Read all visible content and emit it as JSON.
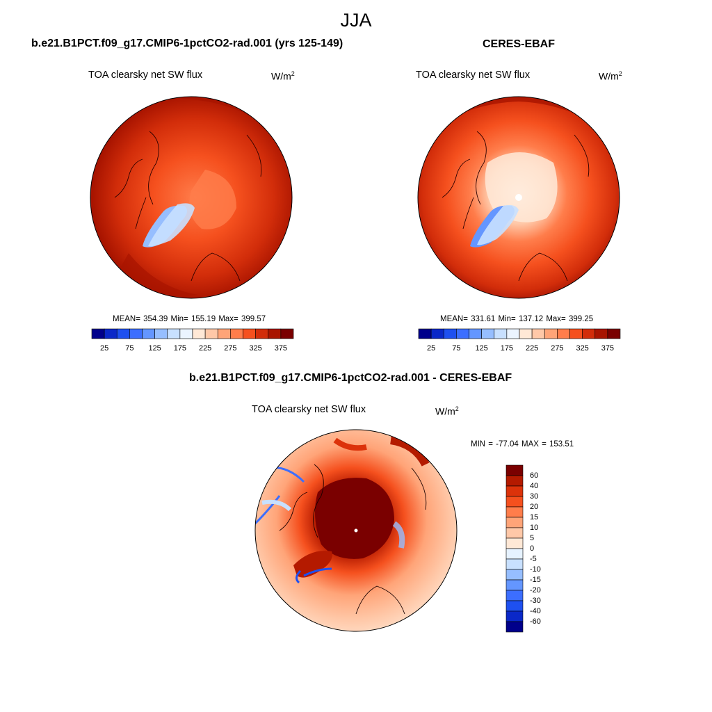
{
  "figure": {
    "season": "JJA"
  },
  "panels": [
    {
      "title": "b.e21.B1PCT.f09_g17.CMIP6-1pctCO2-rad.001 (yrs 125-149)",
      "variable": "TOA clearsky net SW flux",
      "units_base": "W/m",
      "units_exp": "2",
      "stats": "MEAN= 354.39  Min= 155.19  Max= 399.57"
    },
    {
      "title": "CERES-EBAF",
      "variable": "TOA clearsky net SW flux",
      "units_base": "W/m",
      "units_exp": "2",
      "stats": "MEAN= 331.61  Min= 137.12  Max= 399.25"
    },
    {
      "title": "b.e21.B1PCT.f09_g17.CMIP6-1pctCO2-rad.001 - CERES-EBAF",
      "variable": "TOA clearsky net SW flux",
      "units_base": "W/m",
      "units_exp": "2",
      "stats": "MIN = -77.04 MAX = 153.51"
    }
  ],
  "colorbars": {
    "field": {
      "tick_labels": [
        "25",
        "75",
        "125",
        "175",
        "225",
        "275",
        "325",
        "375"
      ],
      "colors": [
        "#00008b",
        "#0a28c8",
        "#1e50f0",
        "#3c6eff",
        "#6496ff",
        "#96beff",
        "#c8e0ff",
        "#ebf4ff",
        "#ffe8d6",
        "#ffc8a8",
        "#ffa478",
        "#ff7d4b",
        "#f5501e",
        "#d22d0a",
        "#a81400",
        "#7a0000"
      ]
    },
    "diff": {
      "tick_labels": [
        "60",
        "40",
        "30",
        "20",
        "15",
        "10",
        "5",
        "0",
        "-5",
        "-10",
        "-15",
        "-20",
        "-30",
        "-40",
        "-60"
      ],
      "colors": [
        "#7a0000",
        "#b41a00",
        "#dc320a",
        "#f5501e",
        "#ff7d4b",
        "#ffa478",
        "#ffc8a8",
        "#ffe8d6",
        "#e6f2ff",
        "#c8e0ff",
        "#96beff",
        "#6496ff",
        "#3c6eff",
        "#1e50f0",
        "#0a28c8",
        "#00008b"
      ]
    }
  }
}
